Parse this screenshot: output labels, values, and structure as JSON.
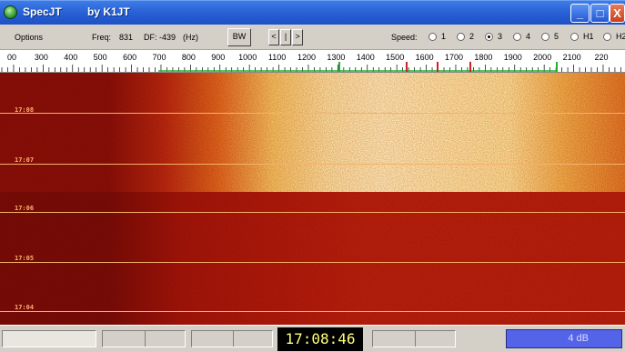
{
  "window": {
    "title": "SpecJT",
    "author": "by K1JT",
    "buttons": {
      "minimize": "_",
      "maximize": "□",
      "close": "X"
    }
  },
  "toolbar": {
    "menu_options": "Options",
    "freq_label": "Freq:",
    "freq_value": "831",
    "df_label": "DF:",
    "df_value": "-439",
    "df_unit": "(Hz)",
    "bw_button": "BW",
    "nav_left": "<",
    "nav_center": "|",
    "nav_right": ">",
    "speed_label": "Speed:",
    "speed_options": [
      "1",
      "2",
      "3",
      "4",
      "5",
      "H1",
      "H2"
    ],
    "speed_selected": "3"
  },
  "ruler": {
    "labels": [
      "00",
      "300",
      "400",
      "500",
      "600",
      "700",
      "800",
      "900",
      "1000",
      "1100",
      "1200",
      "1300",
      "1400",
      "1500",
      "1600",
      "1700",
      "1800",
      "1900",
      "2000",
      "2100",
      "220"
    ],
    "marker_colors": {
      "green": "#20b030",
      "red": "#d02020"
    }
  },
  "waterfall": {
    "time_labels": [
      "17:08",
      "17:07",
      "17:06",
      "17:05",
      "17:04"
    ]
  },
  "status": {
    "clock": "17:08:46",
    "level": "4 dB"
  }
}
